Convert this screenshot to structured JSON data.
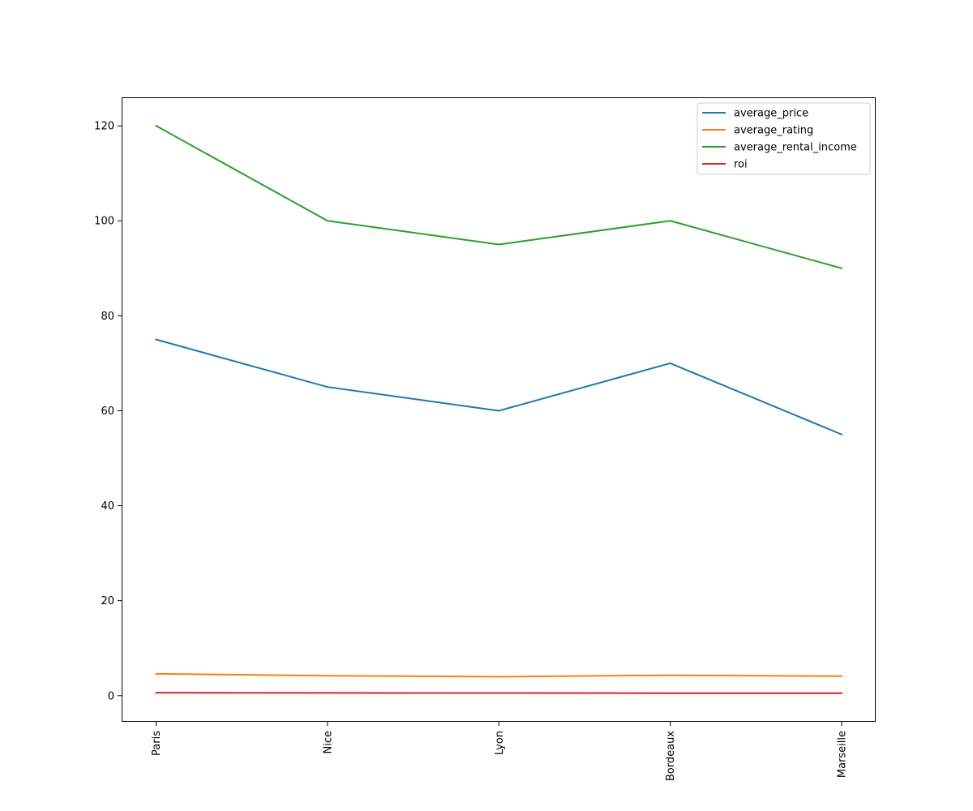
{
  "chart_data": {
    "type": "line",
    "categories": [
      "Paris",
      "Nice",
      "Lyon",
      "Bordeaux",
      "Marseille"
    ],
    "series": [
      {
        "name": "average_price",
        "values": [
          75,
          65,
          60,
          70,
          55
        ],
        "color": "#1f77b4"
      },
      {
        "name": "average_rating",
        "values": [
          4.6,
          4.2,
          4.0,
          4.3,
          4.1
        ],
        "color": "#ff7f0e"
      },
      {
        "name": "average_rental_income",
        "values": [
          120,
          100,
          95,
          100,
          90
        ],
        "color": "#2ca02c"
      },
      {
        "name": "roi",
        "values": [
          0.62,
          0.58,
          0.56,
          0.53,
          0.51
        ],
        "color": "#d62728"
      }
    ],
    "yticks": [
      0,
      20,
      40,
      60,
      80,
      100,
      120
    ],
    "ylim": [
      -5.5,
      126.0
    ],
    "xlabel_rotation": "vertical",
    "legend_position": "top-right",
    "grid": false
  }
}
